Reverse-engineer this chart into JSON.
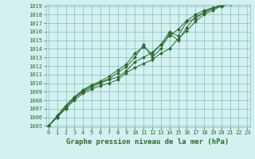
{
  "x": [
    0,
    1,
    2,
    3,
    4,
    5,
    6,
    7,
    8,
    9,
    10,
    11,
    12,
    13,
    14,
    15,
    16,
    17,
    18,
    19,
    20,
    21,
    22,
    23
  ],
  "lines": [
    [
      1005.0,
      1006.1,
      1007.1,
      1008.0,
      1008.8,
      1009.3,
      1009.7,
      1010.0,
      1010.4,
      1011.2,
      1011.8,
      1012.3,
      1012.7,
      1013.5,
      1014.0,
      1015.2,
      1016.1,
      1017.2,
      1018.0,
      1018.5,
      1019.0,
      1019.2,
      1019.5,
      1019.8
    ],
    [
      1005.0,
      1006.0,
      1007.0,
      1008.2,
      1009.0,
      1009.5,
      1010.0,
      1010.4,
      1010.7,
      1011.4,
      1012.5,
      1013.0,
      1013.6,
      1014.5,
      1015.5,
      1016.3,
      1017.3,
      1018.0,
      1018.5,
      1018.8,
      1019.1,
      1019.3,
      1019.6,
      1019.9
    ],
    [
      1005.0,
      1006.0,
      1007.3,
      1008.3,
      1009.1,
      1009.7,
      1010.1,
      1010.5,
      1011.2,
      1011.9,
      1013.0,
      1014.5,
      1013.0,
      1014.0,
      1015.8,
      1015.0,
      1016.5,
      1017.8,
      1018.2,
      1018.7,
      1019.0,
      1019.2,
      1019.5,
      1019.8
    ],
    [
      1005.0,
      1006.2,
      1007.4,
      1008.4,
      1009.2,
      1009.8,
      1010.2,
      1010.8,
      1011.5,
      1012.2,
      1013.5,
      1014.2,
      1013.4,
      1014.5,
      1016.0,
      1015.5,
      1017.2,
      1017.5,
      1018.3,
      1018.8,
      1019.1,
      1019.3,
      1019.6,
      1019.9
    ]
  ],
  "line_color": "#2d6a2d",
  "marker": "D",
  "marker_size": 2.0,
  "bg_color": "#d4f0f0",
  "grid_color": "#7fbfbf",
  "title": "Graphe pression niveau de la mer (hPa)",
  "ylim": [
    1005,
    1019
  ],
  "xlim": [
    0,
    23
  ],
  "yticks": [
    1005,
    1006,
    1007,
    1008,
    1009,
    1010,
    1011,
    1012,
    1013,
    1014,
    1015,
    1016,
    1017,
    1018,
    1019
  ],
  "xticks": [
    0,
    1,
    2,
    3,
    4,
    5,
    6,
    7,
    8,
    9,
    10,
    11,
    12,
    13,
    14,
    15,
    16,
    17,
    18,
    19,
    20,
    21,
    22,
    23
  ],
  "tick_fontsize": 5.0,
  "title_fontsize": 6.5,
  "title_bold": true
}
